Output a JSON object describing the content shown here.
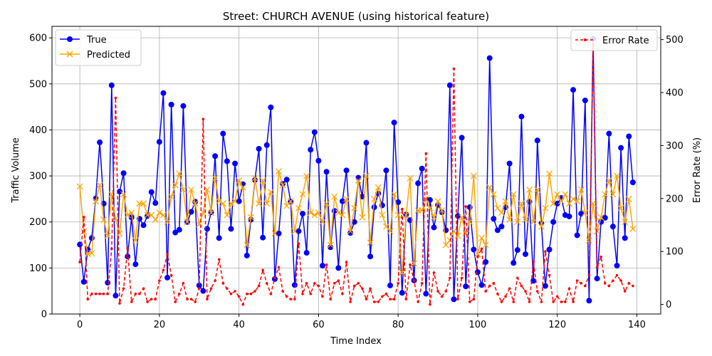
{
  "chart_data": {
    "type": "line",
    "title": "Street: CHURCH AVENUE (using historical feature)",
    "xlabel": "Time Index",
    "ylabel_left": "Traffic Volume",
    "ylabel_right": "Error Rate (%)",
    "xlim": [
      -7,
      146
    ],
    "ylim_left": [
      0,
      625
    ],
    "ylim_right": [
      -18,
      525
    ],
    "x_ticks": [
      0,
      20,
      40,
      60,
      80,
      100,
      120,
      140
    ],
    "y_ticks_left": [
      0,
      100,
      200,
      300,
      400,
      500,
      600
    ],
    "y_ticks_right": [
      0,
      100,
      200,
      300,
      400,
      500
    ],
    "grid": true,
    "legend_left_position": "upper-left",
    "legend_right_position": "upper-right",
    "series": [
      {
        "name": "True",
        "axis": "left",
        "color": "#0000ff",
        "marker": "circle",
        "values": [
          151,
          70,
          140,
          165,
          251,
          373,
          240,
          68,
          497,
          40,
          266,
          306,
          125,
          210,
          108,
          207,
          193,
          213,
          265,
          241,
          374,
          480,
          79,
          455,
          177,
          183,
          452,
          200,
          222,
          244,
          62,
          50,
          185,
          221,
          343,
          165,
          392,
          332,
          185,
          327,
          245,
          282,
          127,
          205,
          291,
          359,
          166,
          367,
          449,
          76,
          175,
          283,
          292,
          244,
          63,
          180,
          218,
          133,
          357,
          395,
          333,
          105,
          309,
          145,
          224,
          100,
          245,
          312,
          176,
          200,
          296,
          255,
          372,
          125,
          232,
          262,
          236,
          312,
          62,
          416,
          243,
          46,
          216,
          204,
          73,
          284,
          316,
          44,
          248,
          188,
          237,
          221,
          182,
          497,
          32,
          213,
          383,
          60,
          232,
          140,
          91,
          63,
          113,
          556,
          207,
          182,
          190,
          232,
          327,
          111,
          139,
          429,
          130,
          244,
          72,
          377,
          197,
          61,
          140,
          200,
          240,
          252,
          215,
          212,
          487,
          171,
          218,
          464,
          29,
          598,
          77,
          200,
          209,
          392,
          190,
          105,
          361,
          165,
          386,
          286
        ]
      },
      {
        "name": "Predicted",
        "axis": "left",
        "color": "#ffa500",
        "marker": "x",
        "values": [
          277,
          179,
          130,
          132,
          245,
          280,
          205,
          170,
          260,
          207,
          175,
          260,
          215,
          220,
          160,
          240,
          240,
          215,
          215,
          205,
          220,
          215,
          200,
          255,
          280,
          305,
          270,
          200,
          270,
          240,
          195,
          220,
          270,
          220,
          295,
          245,
          240,
          215,
          240,
          245,
          290,
          275,
          150,
          210,
          295,
          240,
          290,
          240,
          265,
          175,
          310,
          280,
          235,
          245,
          180,
          230,
          260,
          300,
          220,
          215,
          220,
          200,
          240,
          150,
          255,
          220,
          215,
          250,
          180,
          230,
          290,
          210,
          300,
          155,
          250,
          275,
          215,
          190,
          180,
          260,
          215,
          90,
          215,
          295,
          110,
          225,
          225,
          250,
          230,
          210,
          245,
          225,
          150,
          160,
          180,
          170,
          210,
          175,
          200,
          300,
          130,
          165,
          150,
          275,
          260,
          230,
          220,
          245,
          205,
          260,
          200,
          240,
          205,
          270,
          200,
          270,
          190,
          230,
          305,
          240,
          260,
          245,
          260,
          240,
          250,
          245,
          270,
          220,
          160,
          240,
          180,
          210,
          260,
          290,
          260,
          300,
          230,
          200,
          250,
          185
        ]
      },
      {
        "name": "Error Rate",
        "axis": "right",
        "color": "#ff0000",
        "marker": "dot",
        "line_style": "dashed",
        "values": [
          80,
          165,
          10,
          20,
          20,
          20,
          20,
          20,
          105,
          390,
          2,
          30,
          105,
          5,
          20,
          20,
          30,
          5,
          10,
          10,
          45,
          65,
          95,
          55,
          5,
          20,
          40,
          10,
          10,
          5,
          30,
          350,
          10,
          30,
          45,
          85,
          40,
          30,
          20,
          25,
          15,
          0,
          20,
          20,
          25,
          35,
          65,
          40,
          20,
          50,
          70,
          25,
          15,
          10,
          10,
          115,
          20,
          40,
          20,
          40,
          35,
          15,
          75,
          10,
          40,
          45,
          20,
          80,
          5,
          35,
          40,
          30,
          10,
          30,
          5,
          5,
          15,
          20,
          10,
          10,
          40,
          180,
          10,
          75,
          45,
          5,
          40,
          285,
          0,
          60,
          25,
          15,
          25,
          50,
          445,
          10,
          50,
          185,
          5,
          10,
          90,
          105,
          25,
          35,
          40,
          20,
          5,
          15,
          30,
          5,
          50,
          35,
          25,
          5,
          80,
          25,
          5,
          100,
          55,
          5,
          15,
          5,
          5,
          30,
          5,
          45,
          40,
          35,
          55,
          490,
          70,
          90,
          40,
          35,
          45,
          55,
          45,
          25,
          40,
          35
        ]
      }
    ]
  }
}
